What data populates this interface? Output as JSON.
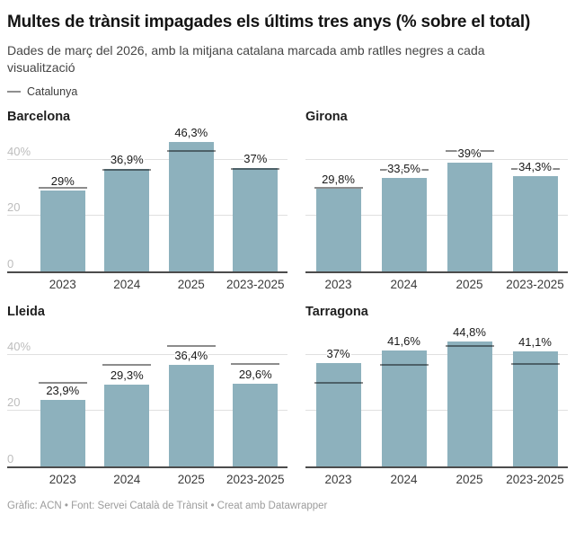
{
  "header": {
    "title": "Multes de trànsit impagades els últims tres anys (% sobre el total)",
    "subtitle": "Dades de març del 2026, amb la mitjana catalana marcada amb ratlles negres a cada visualització"
  },
  "legend": {
    "label": "Catalunya",
    "line_color": "#8f8f8f"
  },
  "chart_data": {
    "type": "bar",
    "layout": "small_multiples_2x2",
    "title": "Multes de trànsit impagades els últims tres anys (% sobre el total)",
    "categories": [
      "2023",
      "2024",
      "2025",
      "2023-2025"
    ],
    "ylim": [
      0,
      48
    ],
    "grid": true,
    "y_axis_ticks": [
      {
        "value": 0,
        "label": "0"
      },
      {
        "value": 20,
        "label": "20"
      },
      {
        "value": 40,
        "label": "40%"
      }
    ],
    "bar_color": "#8db1bd",
    "marker_overlay": {
      "name": "Catalunya",
      "description": "mitjana catalana marcada amb ratlles negres",
      "values": [
        29.9,
        36.4,
        43.2,
        36.6
      ],
      "color": "rgba(0,0,0,0.45)"
    },
    "series": [
      {
        "name": "Barcelona",
        "values": [
          29,
          36.9,
          46.3,
          37
        ],
        "labels": [
          "29%",
          "36,9%",
          "46,3%",
          "37%"
        ],
        "show_y_labels": true
      },
      {
        "name": "Girona",
        "values": [
          29.8,
          33.5,
          39,
          34.3
        ],
        "labels": [
          "29,8%",
          "33,5%",
          "39%",
          "34,3%"
        ],
        "show_y_labels": false
      },
      {
        "name": "Lleida",
        "values": [
          23.9,
          29.3,
          36.4,
          29.6
        ],
        "labels": [
          "23,9%",
          "29,3%",
          "36,4%",
          "29,6%"
        ],
        "show_y_labels": true
      },
      {
        "name": "Tarragona",
        "values": [
          37,
          41.6,
          44.8,
          41.1
        ],
        "labels": [
          "37%",
          "41,6%",
          "44,8%",
          "41,1%"
        ],
        "show_y_labels": false
      }
    ]
  },
  "footer": {
    "text": "Gràfic: ACN • Font: Servei Català de Trànsit • Creat amb Datawrapper"
  }
}
